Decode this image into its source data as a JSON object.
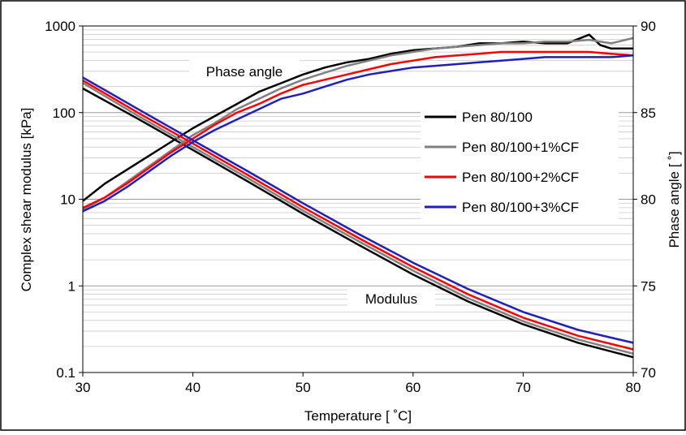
{
  "chart_data": {
    "type": "line",
    "xlabel": "Temperature [ ˚C]",
    "ylabel": "Complex shear modulus [kPa]",
    "y2label": "Phase angle [ ˚]",
    "xlim": [
      30,
      80
    ],
    "ylim": [
      0.1,
      1000
    ],
    "y_scale": "log",
    "y2lim": [
      70,
      90
    ],
    "x_ticks": [
      "30",
      "40",
      "50",
      "60",
      "70",
      "80"
    ],
    "y_ticks": [
      "0.1",
      "1",
      "10",
      "100",
      "1000"
    ],
    "y2_ticks": [
      "70",
      "75",
      "80",
      "85",
      "90"
    ],
    "grid": "horizontal minor grid lines",
    "legend_position": "right-middle inside plot",
    "annotations": {
      "phase": "Phase angle",
      "modulus": "Modulus"
    },
    "series": [
      {
        "name": "Pen 80/100",
        "color": "#000000",
        "modulus": {
          "x": [
            30,
            35,
            40,
            45,
            50,
            55,
            60,
            65,
            70,
            75,
            80
          ],
          "y": [
            190,
            85,
            37,
            16,
            6.8,
            3.0,
            1.35,
            0.66,
            0.36,
            0.22,
            0.15
          ]
        },
        "phase_angle": {
          "x": [
            30,
            32,
            34,
            36,
            38,
            40,
            42,
            44,
            46,
            48,
            50,
            52,
            54,
            56,
            58,
            60,
            62,
            64,
            66,
            68,
            70,
            72,
            74,
            76,
            77,
            78,
            80
          ],
          "y": [
            79.9,
            80.9,
            81.7,
            82.5,
            83.3,
            84.1,
            84.8,
            85.5,
            86.2,
            86.7,
            87.2,
            87.6,
            87.9,
            88.1,
            88.4,
            88.6,
            88.7,
            88.8,
            89.0,
            89.0,
            89.1,
            89.0,
            89.0,
            89.5,
            88.9,
            88.7,
            88.7
          ]
        }
      },
      {
        "name": "Pen 80/100+1%CF",
        "color": "#808080",
        "modulus": {
          "x": [
            30,
            35,
            40,
            45,
            50,
            55,
            60,
            65,
            70,
            75,
            80
          ],
          "y": [
            220,
            92,
            40,
            17.5,
            7.4,
            3.3,
            1.5,
            0.72,
            0.39,
            0.24,
            0.165
          ]
        },
        "phase_angle": {
          "x": [
            30,
            32,
            34,
            36,
            38,
            40,
            42,
            44,
            46,
            48,
            50,
            52,
            54,
            56,
            58,
            60,
            62,
            64,
            66,
            68,
            70,
            72,
            74,
            76,
            78,
            80
          ],
          "y": [
            79.4,
            80.1,
            81.0,
            81.9,
            82.8,
            83.7,
            84.4,
            85.2,
            85.8,
            86.4,
            86.9,
            87.3,
            87.7,
            88.0,
            88.3,
            88.5,
            88.7,
            88.8,
            88.9,
            89.0,
            89.0,
            89.1,
            89.1,
            89.2,
            89.0,
            89.3
          ]
        }
      },
      {
        "name": "Pen 80/100+2%CF",
        "color": "#ff0000",
        "modulus": {
          "x": [
            30,
            35,
            40,
            45,
            50,
            55,
            60,
            65,
            70,
            75,
            80
          ],
          "y": [
            235,
            100,
            44,
            19,
            8.1,
            3.6,
            1.65,
            0.8,
            0.43,
            0.265,
            0.185
          ]
        },
        "phase_angle": {
          "x": [
            30,
            32,
            34,
            36,
            38,
            40,
            42,
            44,
            46,
            48,
            50,
            52,
            54,
            56,
            58,
            60,
            62,
            64,
            66,
            68,
            70,
            72,
            74,
            76,
            78,
            80
          ],
          "y": [
            79.5,
            80.1,
            80.9,
            81.8,
            82.7,
            83.5,
            84.3,
            85.0,
            85.5,
            86.1,
            86.6,
            86.9,
            87.2,
            87.5,
            87.8,
            88.0,
            88.2,
            88.3,
            88.4,
            88.5,
            88.5,
            88.5,
            88.5,
            88.5,
            88.4,
            88.3
          ]
        }
      },
      {
        "name": "Pen 80/100+3%CF",
        "color": "#1f1fbf",
        "modulus": {
          "x": [
            30,
            35,
            40,
            45,
            50,
            55,
            60,
            65,
            70,
            75,
            80
          ],
          "y": [
            255,
            110,
            48,
            21,
            9.0,
            4.0,
            1.85,
            0.92,
            0.5,
            0.31,
            0.22
          ]
        },
        "phase_angle": {
          "x": [
            30,
            32,
            34,
            36,
            38,
            40,
            42,
            44,
            46,
            48,
            50,
            52,
            54,
            56,
            58,
            60,
            62,
            64,
            66,
            68,
            70,
            72,
            74,
            76,
            78,
            80
          ],
          "y": [
            79.3,
            79.9,
            80.7,
            81.6,
            82.5,
            83.3,
            84.0,
            84.6,
            85.2,
            85.8,
            86.1,
            86.5,
            86.9,
            87.2,
            87.4,
            87.6,
            87.7,
            87.8,
            87.9,
            88.0,
            88.1,
            88.2,
            88.2,
            88.2,
            88.2,
            88.3
          ]
        }
      }
    ]
  }
}
